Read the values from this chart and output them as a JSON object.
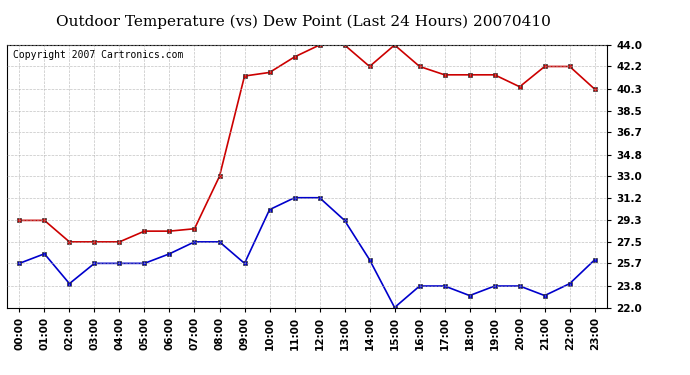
{
  "title": "Outdoor Temperature (vs) Dew Point (Last 24 Hours) 20070410",
  "copyright_text": "Copyright 2007 Cartronics.com",
  "x_labels": [
    "00:00",
    "01:00",
    "02:00",
    "03:00",
    "04:00",
    "05:00",
    "06:00",
    "07:00",
    "08:00",
    "09:00",
    "10:00",
    "11:00",
    "12:00",
    "13:00",
    "14:00",
    "15:00",
    "16:00",
    "17:00",
    "18:00",
    "19:00",
    "20:00",
    "21:00",
    "22:00",
    "23:00"
  ],
  "temp_data": [
    29.3,
    29.3,
    27.5,
    27.5,
    27.5,
    28.4,
    28.4,
    28.6,
    33.0,
    41.4,
    41.7,
    43.0,
    44.0,
    44.0,
    42.2,
    44.0,
    42.2,
    41.5,
    41.5,
    41.5,
    40.5,
    42.2,
    42.2,
    40.3
  ],
  "dew_data": [
    25.7,
    26.5,
    24.0,
    25.7,
    25.7,
    25.7,
    26.5,
    27.5,
    27.5,
    25.7,
    30.2,
    31.2,
    31.2,
    29.3,
    26.0,
    22.0,
    23.8,
    23.8,
    23.0,
    23.8,
    23.8,
    23.0,
    24.0,
    26.0
  ],
  "temp_color": "#cc0000",
  "dew_color": "#0000cc",
  "bg_color": "#ffffff",
  "plot_bg_color": "#ffffff",
  "grid_color": "#aaaaaa",
  "ylim": [
    22.0,
    44.0
  ],
  "y_ticks": [
    22.0,
    23.8,
    25.7,
    27.5,
    29.3,
    31.2,
    33.0,
    34.8,
    36.7,
    38.5,
    40.3,
    42.2,
    44.0
  ],
  "title_fontsize": 11,
  "copyright_fontsize": 7,
  "tick_fontsize": 7.5
}
